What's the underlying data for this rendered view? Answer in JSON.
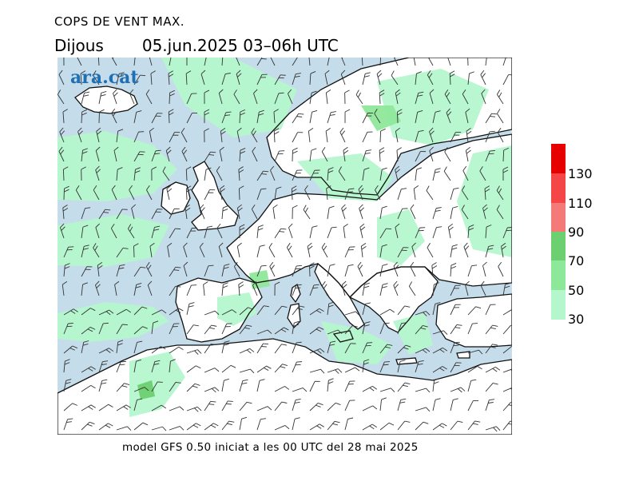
{
  "header": {
    "title": "COPS DE VENT MAX.",
    "day": "Dijous",
    "datetime": "05.jun.2025 03–06h UTC"
  },
  "logo": {
    "text": "ara.cat"
  },
  "legend": {
    "labels": [
      "30",
      "50",
      "70",
      "90",
      "110",
      "130"
    ],
    "colors": [
      "#b4f7cc",
      "#8ee89a",
      "#6ccf70",
      "#f47a7a",
      "#f44646",
      "#e60000"
    ]
  },
  "map": {
    "sea_color": "#c5dcea",
    "land_color": "#ffffff",
    "barb_color": "#333333"
  },
  "footer": {
    "text": "model GFS 0.50 iniciat a les 00 UTC del 28 mai 2025"
  }
}
